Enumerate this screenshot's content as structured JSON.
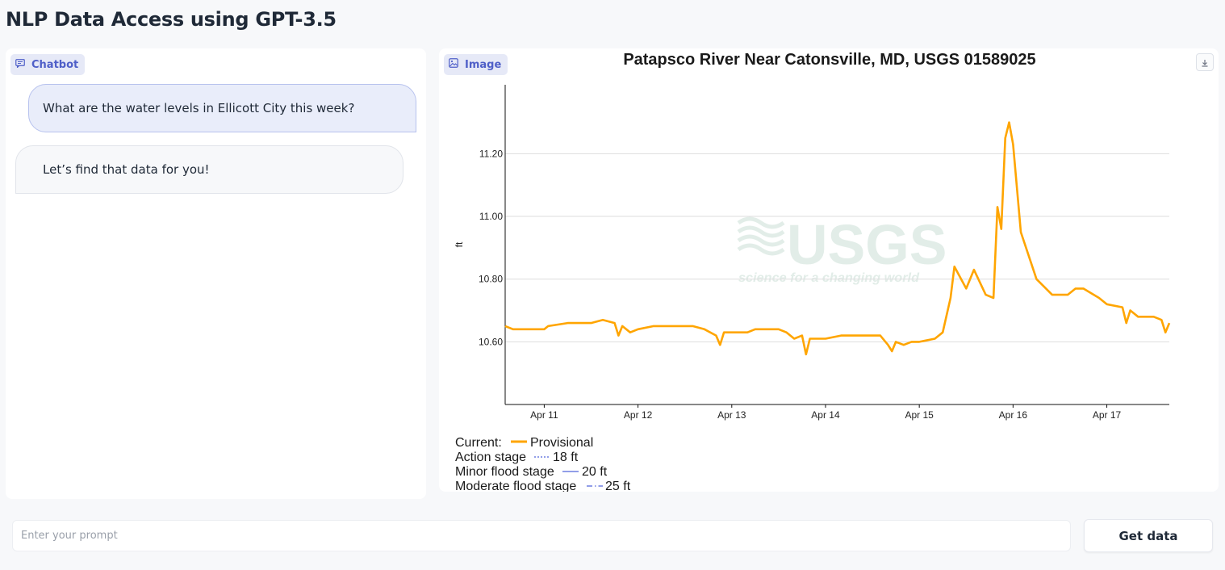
{
  "app": {
    "title": "NLP Data Access using GPT-3.5"
  },
  "chatbot": {
    "label": "Chatbot",
    "messages": [
      {
        "role": "user",
        "text": "What are the water levels in Ellicott City this week?"
      },
      {
        "role": "bot",
        "text": "Let’s find that data for you!"
      }
    ]
  },
  "image_panel": {
    "label": "Image"
  },
  "prompt": {
    "placeholder": "Enter your prompt",
    "value": ""
  },
  "submit": {
    "label": "Get data"
  },
  "icons": {
    "chatbot": "chat-bubble-icon",
    "image": "image-icon",
    "download": "download-icon"
  },
  "colors": {
    "accent": "#4f5fc8",
    "series": "#ffa500",
    "flood_stage_line": "#6f7fe0",
    "grid": "#dddddd"
  },
  "chart_data": {
    "type": "line",
    "title": "Patapsco River Near Catonsville, MD, USGS 01589025",
    "ylabel": "ft",
    "xlabel": "",
    "xlim": [
      "Apr 10 14:00",
      "Apr 17 16:00"
    ],
    "ylim": [
      10.4,
      11.42
    ],
    "x_ticks": [
      "Apr 11",
      "Apr 12",
      "Apr 13",
      "Apr 14",
      "Apr 15",
      "Apr 16",
      "Apr 17"
    ],
    "y_ticks": [
      "10.60",
      "10.80",
      "11.00",
      "11.20"
    ],
    "grid": "horizontal",
    "watermark": {
      "text": "USGS",
      "subtext": "science for a changing world"
    },
    "series": [
      {
        "name": "Provisional",
        "color": "#ffa500",
        "points": [
          [
            "Apr 10 14:00",
            10.65
          ],
          [
            "Apr 10 16:00",
            10.64
          ],
          [
            "Apr 11 00:00",
            10.64
          ],
          [
            "Apr 11 01:00",
            10.65
          ],
          [
            "Apr 11 06:00",
            10.66
          ],
          [
            "Apr 11 12:00",
            10.66
          ],
          [
            "Apr 11 15:00",
            10.67
          ],
          [
            "Apr 11 18:00",
            10.66
          ],
          [
            "Apr 11 19:00",
            10.62
          ],
          [
            "Apr 11 20:00",
            10.65
          ],
          [
            "Apr 11 22:00",
            10.63
          ],
          [
            "Apr 12 00:00",
            10.64
          ],
          [
            "Apr 12 04:00",
            10.65
          ],
          [
            "Apr 12 10:00",
            10.65
          ],
          [
            "Apr 12 14:00",
            10.65
          ],
          [
            "Apr 12 17:00",
            10.64
          ],
          [
            "Apr 12 20:00",
            10.62
          ],
          [
            "Apr 12 21:00",
            10.59
          ],
          [
            "Apr 12 22:00",
            10.63
          ],
          [
            "Apr 13 00:00",
            10.63
          ],
          [
            "Apr 13 04:00",
            10.63
          ],
          [
            "Apr 13 06:00",
            10.64
          ],
          [
            "Apr 13 12:00",
            10.64
          ],
          [
            "Apr 13 14:00",
            10.63
          ],
          [
            "Apr 13 16:00",
            10.61
          ],
          [
            "Apr 13 18:00",
            10.62
          ],
          [
            "Apr 13 19:00",
            10.56
          ],
          [
            "Apr 13 20:00",
            10.61
          ],
          [
            "Apr 14 00:00",
            10.61
          ],
          [
            "Apr 14 04:00",
            10.62
          ],
          [
            "Apr 14 10:00",
            10.62
          ],
          [
            "Apr 14 14:00",
            10.62
          ],
          [
            "Apr 14 16:00",
            10.59
          ],
          [
            "Apr 14 17:00",
            10.57
          ],
          [
            "Apr 14 18:00",
            10.6
          ],
          [
            "Apr 14 20:00",
            10.59
          ],
          [
            "Apr 14 22:00",
            10.6
          ],
          [
            "Apr 15 00:00",
            10.6
          ],
          [
            "Apr 15 04:00",
            10.61
          ],
          [
            "Apr 15 06:00",
            10.63
          ],
          [
            "Apr 15 08:00",
            10.74
          ],
          [
            "Apr 15 09:00",
            10.84
          ],
          [
            "Apr 15 12:00",
            10.77
          ],
          [
            "Apr 15 14:00",
            10.83
          ],
          [
            "Apr 15 17:00",
            10.75
          ],
          [
            "Apr 15 19:00",
            10.74
          ],
          [
            "Apr 15 20:00",
            11.03
          ],
          [
            "Apr 15 21:00",
            10.96
          ],
          [
            "Apr 15 22:00",
            11.25
          ],
          [
            "Apr 15 23:00",
            11.3
          ],
          [
            "Apr 16 00:00",
            11.23
          ],
          [
            "Apr 16 02:00",
            10.95
          ],
          [
            "Apr 16 06:00",
            10.8
          ],
          [
            "Apr 16 10:00",
            10.75
          ],
          [
            "Apr 16 14:00",
            10.75
          ],
          [
            "Apr 16 16:00",
            10.77
          ],
          [
            "Apr 16 18:00",
            10.77
          ],
          [
            "Apr 16 22:00",
            10.74
          ],
          [
            "Apr 17 00:00",
            10.72
          ],
          [
            "Apr 17 04:00",
            10.71
          ],
          [
            "Apr 17 05:00",
            10.66
          ],
          [
            "Apr 17 06:00",
            10.7
          ],
          [
            "Apr 17 08:00",
            10.68
          ],
          [
            "Apr 17 12:00",
            10.68
          ],
          [
            "Apr 17 14:00",
            10.67
          ],
          [
            "Apr 17 15:00",
            10.63
          ],
          [
            "Apr 17 16:00",
            10.66
          ]
        ]
      }
    ],
    "legend": {
      "current_label": "Current:",
      "current_series": "Provisional",
      "items": [
        {
          "label": "Action stage",
          "value": "18 ft",
          "style": "dotted"
        },
        {
          "label": "Minor flood stage",
          "value": "20 ft",
          "style": "solid"
        },
        {
          "label": "Moderate flood stage",
          "value": "25 ft",
          "style": "dashdot"
        }
      ]
    }
  }
}
